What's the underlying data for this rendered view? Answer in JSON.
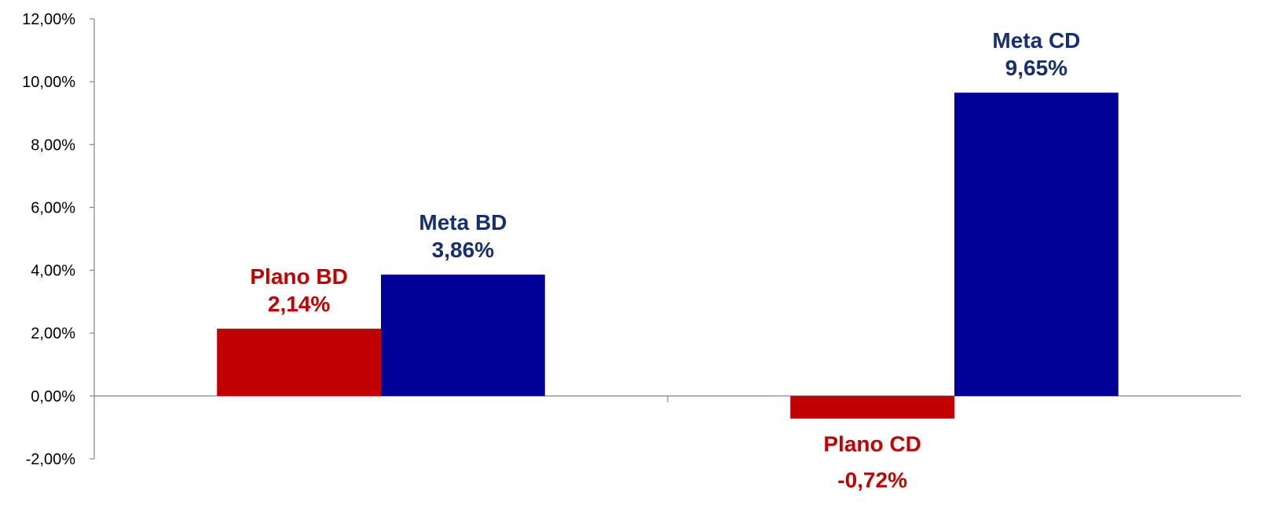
{
  "chart_data": {
    "type": "bar",
    "title": "",
    "xlabel": "",
    "ylabel": "",
    "ylim": [
      -2,
      12
    ],
    "yticks": [
      {
        "value": -2,
        "label": "-2,00%"
      },
      {
        "value": 0,
        "label": "0,00%"
      },
      {
        "value": 2,
        "label": "2,00%"
      },
      {
        "value": 4,
        "label": "4,00%"
      },
      {
        "value": 6,
        "label": "6,00%"
      },
      {
        "value": 8,
        "label": "8,00%"
      },
      {
        "value": 10,
        "label": "10,00%"
      },
      {
        "value": 12,
        "label": "12,00%"
      }
    ],
    "categories": [
      "",
      ""
    ],
    "series": [
      {
        "values": [
          2.14,
          -0.72
        ],
        "color": "#C00000",
        "labels": [
          {
            "name": "Plano BD",
            "value": "2,14%"
          },
          {
            "name": "Plano CD",
            "value": "-0,72%"
          }
        ]
      },
      {
        "values": [
          3.86,
          9.65
        ],
        "color": "#000099",
        "labels": [
          {
            "name": "Meta BD",
            "value": "3,86%"
          },
          {
            "name": "Meta CD",
            "value": "9,65%"
          }
        ]
      }
    ],
    "label_colors": [
      "#C00000",
      "#17306B"
    ],
    "grid": false,
    "legend": "none",
    "axis_color": "#868686"
  }
}
